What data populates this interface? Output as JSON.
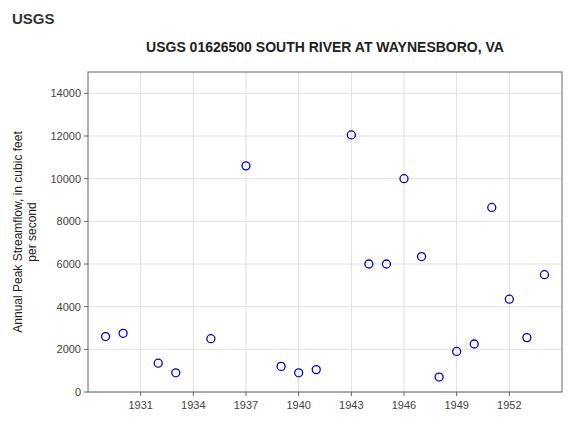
{
  "chart_data": {
    "type": "scatter",
    "title": "USGS 01626500 SOUTH RIVER AT WAYNESBORO, VA",
    "ylabel": "Annual Peak Streamflow, in cubic feet\nper second",
    "annotations": [
      "USGS"
    ],
    "x": [
      1929,
      1930,
      1932,
      1933,
      1935,
      1937,
      1939,
      1940,
      1941,
      1943,
      1944,
      1945,
      1946,
      1947,
      1948,
      1949,
      1950,
      1951,
      1952,
      1953,
      1954
    ],
    "values": [
      2600,
      2750,
      1350,
      900,
      2500,
      10600,
      1200,
      900,
      1050,
      12050,
      6000,
      6000,
      10000,
      6350,
      700,
      1900,
      2250,
      8650,
      4350,
      2550,
      5500
    ],
    "color": "#0000CC",
    "marker": "circle",
    "xlim": [
      1928,
      1955
    ],
    "ylim": [
      0,
      15000
    ],
    "xticks": [
      1931,
      1934,
      1937,
      1940,
      1943,
      1946,
      1949,
      1952
    ],
    "yticks": [
      0,
      2000,
      4000,
      6000,
      8000,
      10000,
      12000,
      14000
    ],
    "grid": true
  }
}
